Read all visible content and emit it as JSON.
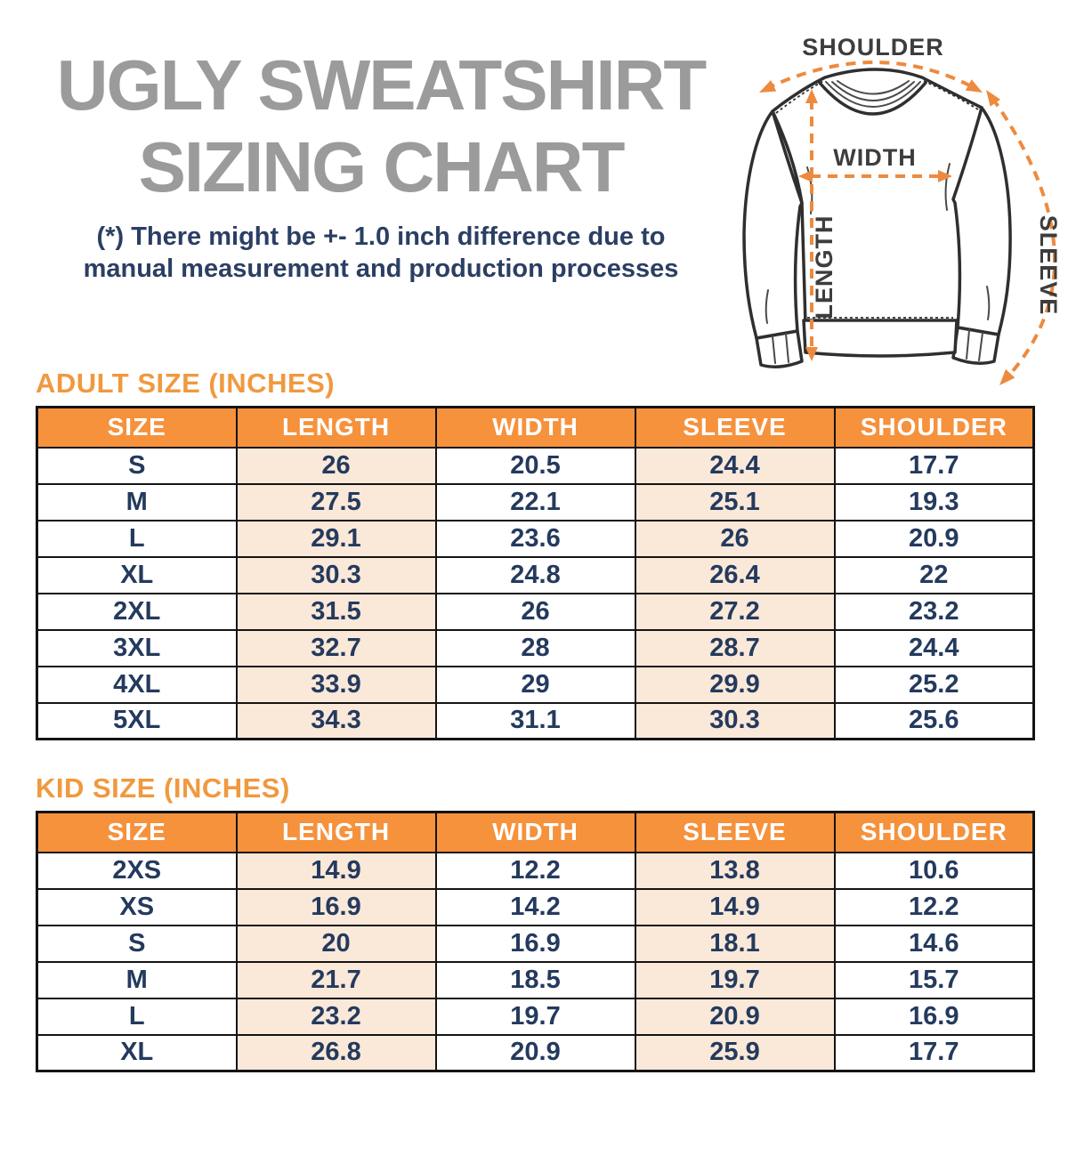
{
  "title": {
    "line1": "UGLY SWEATSHIRT",
    "line2": "SIZING CHART"
  },
  "disclaimer": {
    "line1": "(*) There might be +- 1.0 inch difference due to",
    "line2": "manual measurement and production processes"
  },
  "diagram": {
    "shoulder_label": "SHOULDER",
    "width_label": "WIDTH",
    "length_label": "LENGTH",
    "sleeve_label": "SLEEVE"
  },
  "colors": {
    "header_orange": "#f6913c",
    "heading_orange": "#f0993f",
    "peach_cell": "#fae8d9",
    "navy_text": "#243a5e",
    "title_gray": "#9b9b9b",
    "arrow_orange": "#ee8a3e"
  },
  "adult_table": {
    "heading": "ADULT SIZE (INCHES)",
    "columns": [
      "SIZE",
      "LENGTH",
      "WIDTH",
      "SLEEVE",
      "SHOULDER"
    ],
    "rows": [
      [
        "S",
        "26",
        "20.5",
        "24.4",
        "17.7"
      ],
      [
        "M",
        "27.5",
        "22.1",
        "25.1",
        "19.3"
      ],
      [
        "L",
        "29.1",
        "23.6",
        "26",
        "20.9"
      ],
      [
        "XL",
        "30.3",
        "24.8",
        "26.4",
        "22"
      ],
      [
        "2XL",
        "31.5",
        "26",
        "27.2",
        "23.2"
      ],
      [
        "3XL",
        "32.7",
        "28",
        "28.7",
        "24.4"
      ],
      [
        "4XL",
        "33.9",
        "29",
        "29.9",
        "25.2"
      ],
      [
        "5XL",
        "34.3",
        "31.1",
        "30.3",
        "25.6"
      ]
    ]
  },
  "kid_table": {
    "heading": "KID SIZE (INCHES)",
    "columns": [
      "SIZE",
      "LENGTH",
      "WIDTH",
      "SLEEVE",
      "SHOULDER"
    ],
    "rows": [
      [
        "2XS",
        "14.9",
        "12.2",
        "13.8",
        "10.6"
      ],
      [
        "XS",
        "16.9",
        "14.2",
        "14.9",
        "12.2"
      ],
      [
        "S",
        "20",
        "16.9",
        "18.1",
        "14.6"
      ],
      [
        "M",
        "21.7",
        "18.5",
        "19.7",
        "15.7"
      ],
      [
        "L",
        "23.2",
        "19.7",
        "20.9",
        "16.9"
      ],
      [
        "XL",
        "26.8",
        "20.9",
        "25.9",
        "17.7"
      ]
    ]
  },
  "chart_data": [
    {
      "type": "table",
      "title": "ADULT SIZE (INCHES)",
      "columns": [
        "SIZE",
        "LENGTH",
        "WIDTH",
        "SLEEVE",
        "SHOULDER"
      ],
      "rows": [
        [
          "S",
          26,
          20.5,
          24.4,
          17.7
        ],
        [
          "M",
          27.5,
          22.1,
          25.1,
          19.3
        ],
        [
          "L",
          29.1,
          23.6,
          26,
          20.9
        ],
        [
          "XL",
          30.3,
          24.8,
          26.4,
          22
        ],
        [
          "2XL",
          31.5,
          26,
          27.2,
          23.2
        ],
        [
          "3XL",
          32.7,
          28,
          28.7,
          24.4
        ],
        [
          "4XL",
          33.9,
          29,
          29.9,
          25.2
        ],
        [
          "5XL",
          34.3,
          31.1,
          30.3,
          25.6
        ]
      ]
    },
    {
      "type": "table",
      "title": "KID SIZE (INCHES)",
      "columns": [
        "SIZE",
        "LENGTH",
        "WIDTH",
        "SLEEVE",
        "SHOULDER"
      ],
      "rows": [
        [
          "2XS",
          14.9,
          12.2,
          13.8,
          10.6
        ],
        [
          "XS",
          16.9,
          14.2,
          14.9,
          12.2
        ],
        [
          "S",
          20,
          16.9,
          18.1,
          14.6
        ],
        [
          "M",
          21.7,
          18.5,
          19.7,
          15.7
        ],
        [
          "L",
          23.2,
          19.7,
          20.9,
          16.9
        ],
        [
          "XL",
          26.8,
          20.9,
          25.9,
          17.7
        ]
      ]
    }
  ]
}
